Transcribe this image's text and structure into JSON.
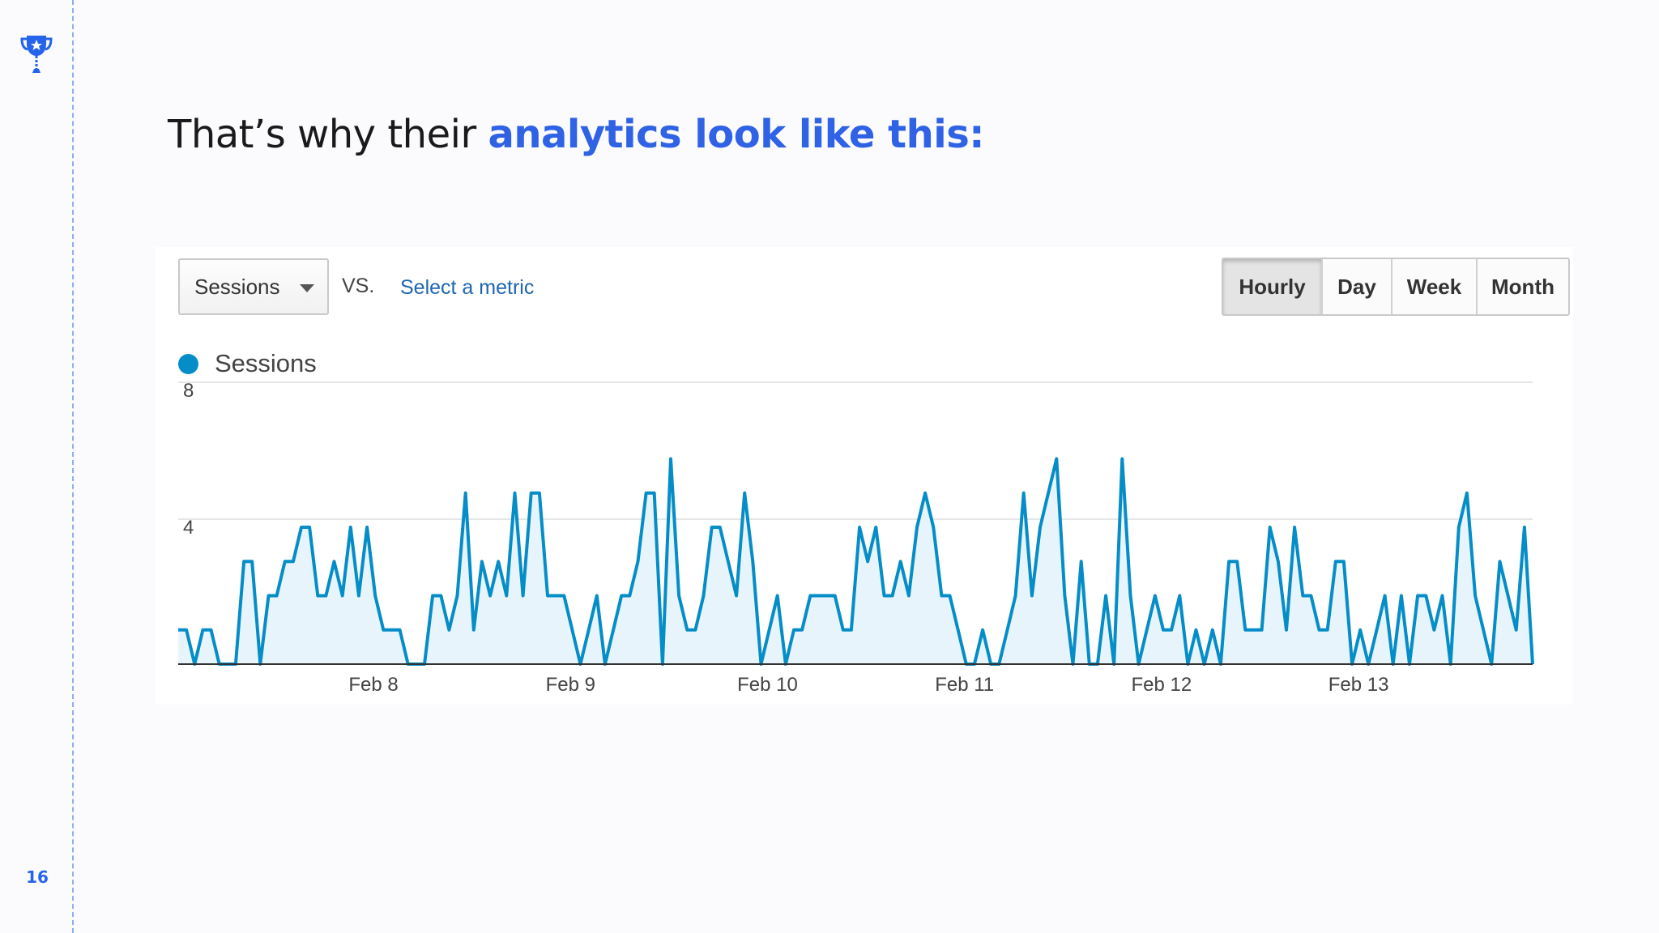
{
  "slide": {
    "page_number": "16",
    "headline_plain": "That’s why their ",
    "headline_highlight": "analytics look like this:",
    "accent_color": "#2563eb",
    "icon": "trophy-icon"
  },
  "controls": {
    "metric_select_value": "Sessions",
    "vs_label": "VS.",
    "compare_link": "Select a metric",
    "granularity_tabs": [
      {
        "label": "Hourly",
        "active": true
      },
      {
        "label": "Day",
        "active": false
      },
      {
        "label": "Week",
        "active": false
      },
      {
        "label": "Month",
        "active": false
      }
    ]
  },
  "chart_data": {
    "type": "area",
    "title": "",
    "xlabel": "",
    "ylabel": "",
    "ylim": [
      0,
      8
    ],
    "yticks": [
      4,
      8
    ],
    "legend": {
      "label": "Sessions",
      "placement": "top-left"
    },
    "series": [
      {
        "name": "Sessions",
        "color": "#058dc7",
        "fill": "#e8f4fb",
        "values": [
          1,
          1,
          0,
          1,
          1,
          0,
          0,
          0,
          3,
          3,
          0,
          2,
          2,
          3,
          3,
          4,
          4,
          2,
          2,
          3,
          2,
          4,
          2,
          4,
          2,
          1,
          1,
          1,
          0,
          0,
          0,
          2,
          2,
          1,
          2,
          5,
          1,
          3,
          2,
          3,
          2,
          5,
          2,
          5,
          5,
          2,
          2,
          2,
          1,
          0,
          1,
          2,
          0,
          1,
          2,
          2,
          3,
          5,
          5,
          0,
          6,
          2,
          1,
          1,
          2,
          4,
          4,
          3,
          2,
          5,
          3,
          0,
          1,
          2,
          0,
          1,
          1,
          2,
          2,
          2,
          2,
          1,
          1,
          4,
          3,
          4,
          2,
          2,
          3,
          2,
          4,
          5,
          4,
          2,
          2,
          1,
          0,
          0,
          1,
          0,
          0,
          1,
          2,
          5,
          2,
          4,
          5,
          6,
          2,
          0,
          3,
          0,
          0,
          2,
          0,
          6,
          2,
          0,
          1,
          2,
          1,
          1,
          2,
          0,
          1,
          0,
          1,
          0,
          3,
          3,
          1,
          1,
          1,
          4,
          3,
          1,
          4,
          2,
          2,
          1,
          1,
          3,
          3,
          0,
          1,
          0,
          1,
          2,
          0,
          2,
          0,
          2,
          2,
          1,
          2,
          0,
          4,
          5,
          2,
          1,
          0,
          3,
          2,
          1,
          4,
          0
        ]
      }
    ],
    "x_labels": [
      {
        "label": "Feb 8",
        "index": 23
      },
      {
        "label": "Feb 9",
        "index": 47
      },
      {
        "label": "Feb 10",
        "index": 71
      },
      {
        "label": "Feb 11",
        "index": 95
      },
      {
        "label": "Feb 12",
        "index": 119
      },
      {
        "label": "Feb 13",
        "index": 143
      }
    ],
    "grid": true
  }
}
